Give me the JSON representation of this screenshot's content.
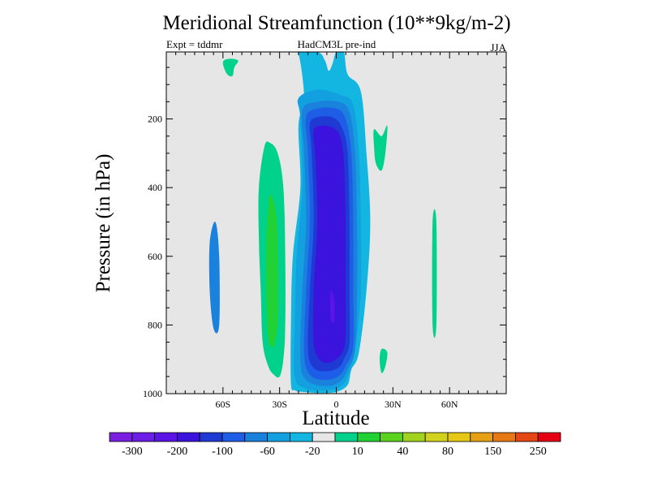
{
  "chart_data": {
    "type": "heatmap",
    "title": "Meridional Streamfunction (10**9kg/m-2)",
    "subtitle_left": "Expt = tddmr",
    "subtitle_center": "HadCM3L pre-ind",
    "subtitle_right": "JJA",
    "xlabel": "Latitude",
    "ylabel": "Pressure (in hPa)",
    "xlim": [
      -90,
      90
    ],
    "ylim": [
      1000,
      5
    ],
    "x_ticks": [
      {
        "value": -60,
        "label": "60S"
      },
      {
        "value": -30,
        "label": "30S"
      },
      {
        "value": 0,
        "label": "0"
      },
      {
        "value": 30,
        "label": "30N"
      },
      {
        "value": 60,
        "label": "60N"
      }
    ],
    "y_ticks": [
      {
        "value": 200,
        "label": "200"
      },
      {
        "value": 400,
        "label": "400"
      },
      {
        "value": 600,
        "label": "600"
      },
      {
        "value": 800,
        "label": "800"
      },
      {
        "value": 1000,
        "label": "1000"
      }
    ],
    "background_color": "#e6e6e6",
    "colorbar": {
      "labels": [
        "-300",
        "-200",
        "-100",
        "-60",
        "-20",
        "10",
        "40",
        "80",
        "150",
        "250"
      ],
      "colors": [
        "#7a1ee0",
        "#6a1ee6",
        "#5a14e6",
        "#3a14dc",
        "#1e3ad2",
        "#1e5ee6",
        "#1a82dc",
        "#12a0e0",
        "#12b6e0",
        "#e6e6e6",
        "#00d28c",
        "#22d234",
        "#5ad21e",
        "#a0d21e",
        "#d2d21e",
        "#e6c814",
        "#e6a014",
        "#e67814",
        "#e64614",
        "#e60014"
      ]
    },
    "contours": [
      {
        "color": "#12b6e0",
        "points": [
          [
            -24,
            5
          ],
          [
            -20,
            10
          ],
          [
            -17,
            140
          ],
          [
            -20,
            220
          ],
          [
            -19,
            400
          ],
          [
            -23,
            600
          ],
          [
            -24,
            800
          ],
          [
            -24,
            970
          ],
          [
            -22,
            990
          ],
          [
            -18,
            995
          ],
          [
            -8,
            998
          ],
          [
            0,
            995
          ],
          [
            6,
            975
          ],
          [
            8,
            930
          ],
          [
            12,
            880
          ],
          [
            16,
            700
          ],
          [
            18,
            500
          ],
          [
            16,
            300
          ],
          [
            13,
            120
          ],
          [
            6,
            70
          ],
          [
            4,
            5
          ],
          [
            0,
            5
          ],
          [
            -2,
            40
          ],
          [
            -4,
            60
          ],
          [
            -6,
            30
          ],
          [
            -10,
            5
          ]
        ]
      },
      {
        "color": "#12a0e0",
        "points": [
          [
            -20,
            140
          ],
          [
            -19,
            200
          ],
          [
            -18,
            400
          ],
          [
            -21,
            600
          ],
          [
            -22,
            800
          ],
          [
            -22,
            950
          ],
          [
            -16,
            985
          ],
          [
            -6,
            990
          ],
          [
            2,
            980
          ],
          [
            6,
            950
          ],
          [
            10,
            870
          ],
          [
            13,
            700
          ],
          [
            13,
            500
          ],
          [
            12,
            300
          ],
          [
            9,
            160
          ],
          [
            2,
            130
          ],
          [
            -10,
            115
          ]
        ]
      },
      {
        "color": "#1a82dc",
        "points": [
          [
            -18,
            175
          ],
          [
            -17,
            300
          ],
          [
            -16,
            500
          ],
          [
            -18,
            700
          ],
          [
            -19,
            900
          ],
          [
            -16,
            960
          ],
          [
            -6,
            978
          ],
          [
            2,
            965
          ],
          [
            6,
            930
          ],
          [
            10,
            870
          ],
          [
            11,
            700
          ],
          [
            11,
            500
          ],
          [
            10,
            300
          ],
          [
            7,
            180
          ],
          [
            1,
            150
          ],
          [
            -10,
            150
          ]
        ]
      },
      {
        "color": "#1e5ee6",
        "points": [
          [
            -16,
            195
          ],
          [
            -15,
            300
          ],
          [
            -14,
            500
          ],
          [
            -16,
            700
          ],
          [
            -17,
            880
          ],
          [
            -14,
            945
          ],
          [
            -6,
            960
          ],
          [
            1,
            950
          ],
          [
            5,
            920
          ],
          [
            9,
            860
          ],
          [
            9,
            700
          ],
          [
            9,
            500
          ],
          [
            8,
            300
          ],
          [
            5,
            200
          ],
          [
            0,
            170
          ],
          [
            -10,
            170
          ]
        ]
      },
      {
        "color": "#1e3ad2",
        "points": [
          [
            -14,
            215
          ],
          [
            -13,
            300
          ],
          [
            -12,
            500
          ],
          [
            -14,
            700
          ],
          [
            -15,
            870
          ],
          [
            -12,
            925
          ],
          [
            -5,
            935
          ],
          [
            1,
            925
          ],
          [
            4,
            900
          ],
          [
            7,
            850
          ],
          [
            7,
            700
          ],
          [
            7,
            500
          ],
          [
            6,
            300
          ],
          [
            3,
            225
          ],
          [
            -2,
            195
          ],
          [
            -10,
            195
          ]
        ]
      },
      {
        "color": "#3a14dc",
        "points": [
          [
            -12,
            235
          ],
          [
            -11,
            320
          ],
          [
            -10,
            500
          ],
          [
            -12,
            700
          ],
          [
            -12,
            850
          ],
          [
            -9,
            900
          ],
          [
            -4,
            910
          ],
          [
            1,
            895
          ],
          [
            4,
            870
          ],
          [
            5,
            820
          ],
          [
            5,
            700
          ],
          [
            5,
            500
          ],
          [
            4,
            320
          ],
          [
            2,
            250
          ],
          [
            -2,
            225
          ],
          [
            -8,
            220
          ]
        ]
      },
      {
        "color": "#5a14e6",
        "points": [
          [
            -3,
            780
          ],
          [
            -1,
            790
          ],
          [
            -1,
            730
          ],
          [
            -3,
            700
          ]
        ]
      },
      {
        "color": "#1a82dc",
        "points": [
          [
            -65,
            810
          ],
          [
            -67,
            700
          ],
          [
            -67,
            560
          ],
          [
            -64,
            500
          ],
          [
            -62,
            600
          ],
          [
            -62,
            800
          ]
        ]
      },
      {
        "color": "#00d28c",
        "points": [
          [
            -58,
            68
          ],
          [
            -55,
            75
          ],
          [
            -54,
            50
          ],
          [
            -52,
            30
          ],
          [
            -57,
            25
          ],
          [
            -60,
            35
          ]
        ]
      },
      {
        "color": "#00d28c",
        "points": [
          [
            -38,
            280
          ],
          [
            -35,
            270
          ],
          [
            -31,
            300
          ],
          [
            -28,
            400
          ],
          [
            -27,
            600
          ],
          [
            -27,
            800
          ],
          [
            -28,
            900
          ],
          [
            -30,
            950
          ],
          [
            -33,
            945
          ],
          [
            -36,
            920
          ],
          [
            -39,
            850
          ],
          [
            -40,
            700
          ],
          [
            -41,
            550
          ],
          [
            -41,
            400
          ]
        ]
      },
      {
        "color": "#22d234",
        "points": [
          [
            -35,
            420
          ],
          [
            -32,
            470
          ],
          [
            -31,
            600
          ],
          [
            -31,
            780
          ],
          [
            -33,
            860
          ],
          [
            -36,
            840
          ],
          [
            -37,
            700
          ],
          [
            -37,
            560
          ],
          [
            -36,
            460
          ]
        ]
      },
      {
        "color": "#00d28c",
        "points": [
          [
            20,
            230
          ],
          [
            24,
            250
          ],
          [
            27,
            220
          ],
          [
            26,
            300
          ],
          [
            24,
            350
          ],
          [
            21,
            330
          ],
          [
            20,
            280
          ]
        ]
      },
      {
        "color": "#00d28c",
        "points": [
          [
            24,
            870
          ],
          [
            27,
            880
          ],
          [
            26,
            920
          ],
          [
            24,
            940
          ],
          [
            23,
            900
          ]
        ]
      },
      {
        "color": "#00d28c",
        "points": [
          [
            51,
            500
          ],
          [
            53,
            500
          ],
          [
            53,
            800
          ],
          [
            51,
            800
          ]
        ]
      }
    ]
  }
}
